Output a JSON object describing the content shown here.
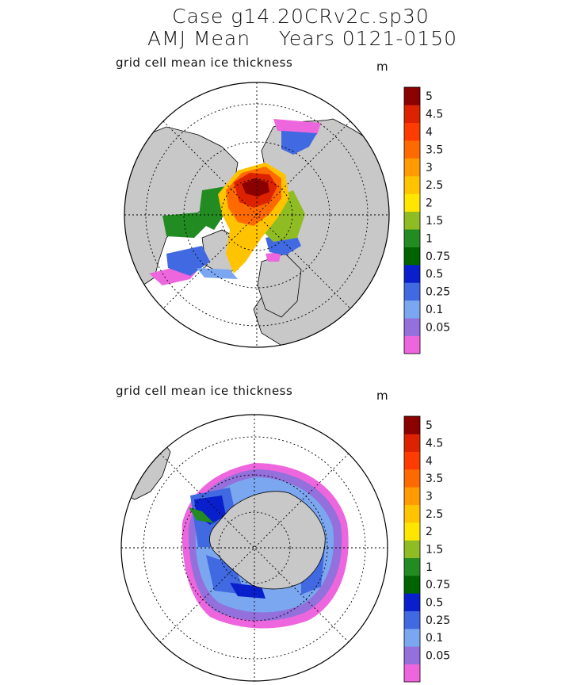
{
  "header": {
    "title_line1": "Case g14.20CRv2c.sp30",
    "title_line2": "AMJ Mean    Years 0121-0150"
  },
  "colors": {
    "land": "#c8c8c8",
    "open_ocean": "#ffffff",
    "scale": [
      "#ee66dd",
      "#9370db",
      "#7ba7f0",
      "#4169e1",
      "#0a1fcc",
      "#006400",
      "#228b22",
      "#8fbc22",
      "#ffe600",
      "#ffc300",
      "#ff9a00",
      "#ff6a00",
      "#ff3c00",
      "#dd2200",
      "#8b0000"
    ]
  },
  "chart_data": [
    {
      "type": "heatmap",
      "projection": "north polar stereographic",
      "title": "grid cell mean ice thickness",
      "units": "m",
      "colorbar_labels": [
        "0.05",
        "0.1",
        "0.25",
        "0.5",
        "0.75",
        "1",
        "1.5",
        "2",
        "2.5",
        "3",
        "3.5",
        "4",
        "4.5",
        "5"
      ],
      "max_thickness_region": "central Arctic north of Canadian Archipelago",
      "approx_max_value": 5
    },
    {
      "type": "heatmap",
      "projection": "south polar stereographic",
      "title": "grid cell mean ice thickness",
      "units": "m",
      "colorbar_labels": [
        "0.05",
        "0.1",
        "0.25",
        "0.5",
        "0.75",
        "1",
        "1.5",
        "2",
        "2.5",
        "3",
        "3.5",
        "4",
        "4.5",
        "5"
      ],
      "max_thickness_region": "western Weddell Sea",
      "approx_max_value": 1.5
    }
  ]
}
